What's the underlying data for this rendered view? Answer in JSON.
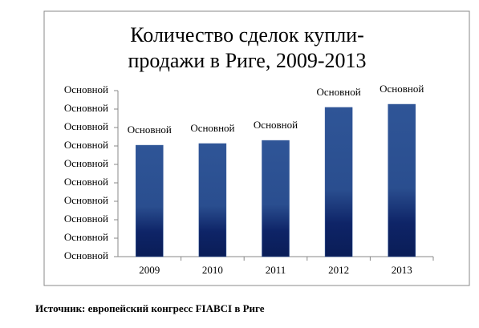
{
  "chart_data": {
    "type": "bar",
    "title": [
      "Количество сделок купли-",
      "продажи в Риге, 2009-2013"
    ],
    "categories": [
      "2009",
      "2010",
      "2011",
      "2012",
      "2013"
    ],
    "values": [
      6.04,
      6.13,
      6.3,
      8.09,
      8.26
    ],
    "value_labels": [
      "Основной",
      "Основной",
      "Основной",
      "Основной",
      "Основной"
    ],
    "color": "#2f5597",
    "ylim": [
      0,
      9
    ],
    "yticks": [
      {
        "value": 0,
        "label": "Основной"
      },
      {
        "value": 1,
        "label": "Основной"
      },
      {
        "value": 2,
        "label": "Основной"
      },
      {
        "value": 3,
        "label": "Основной"
      },
      {
        "value": 4,
        "label": "Основной"
      },
      {
        "value": 5,
        "label": "Основной"
      },
      {
        "value": 6,
        "label": "Основной"
      },
      {
        "value": 7,
        "label": "Основной"
      },
      {
        "value": 8,
        "label": "Основной"
      },
      {
        "value": 9,
        "label": "Основной"
      }
    ],
    "grid": false
  },
  "source": "Источник: европейский конгресс FIABCI в Риге"
}
